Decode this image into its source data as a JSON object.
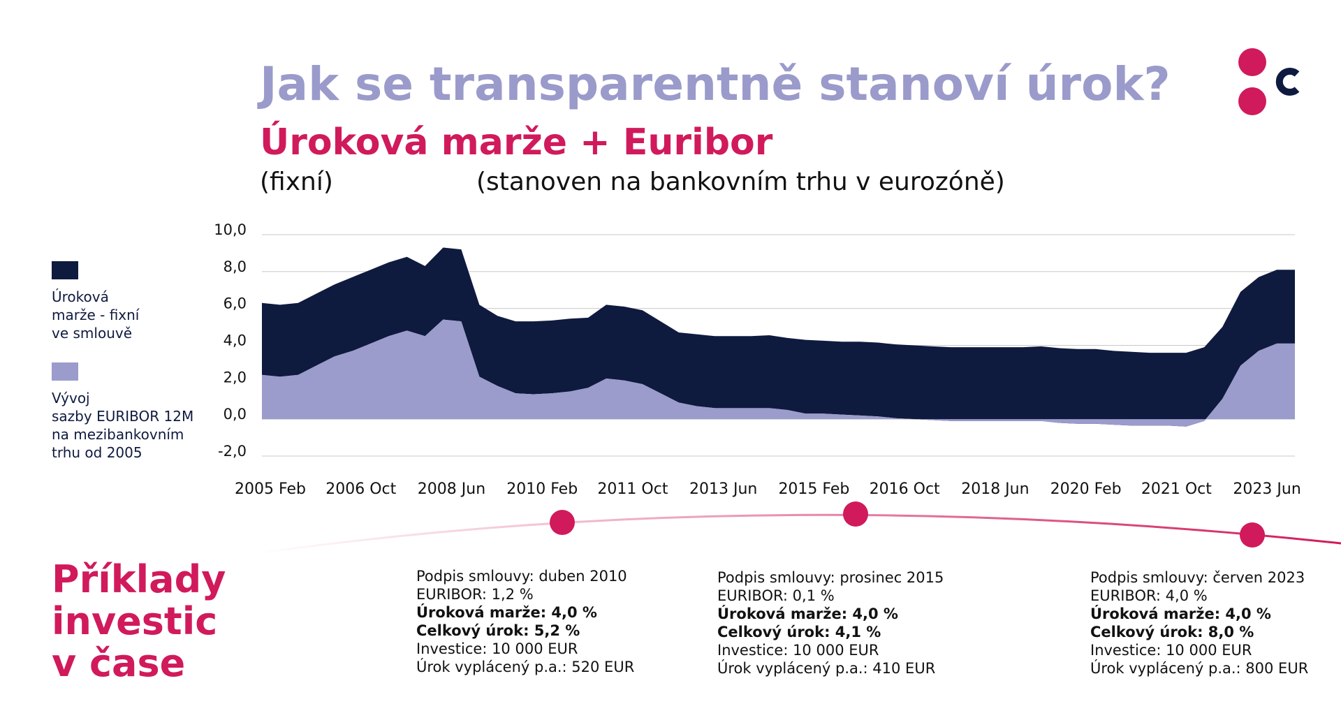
{
  "chart_data": {
    "type": "stacked_area",
    "title": "Jak se transparentně stanoví úrok?",
    "subtitle": "Úroková marže + Euribor",
    "annotations": [
      "(fixní)",
      "(stanoven na bankovním trhu v eurozóně)"
    ],
    "categories": [
      "2005 Feb",
      null,
      null,
      null,
      null,
      "2006 Oct",
      null,
      null,
      null,
      null,
      "2008 Jun",
      null,
      null,
      null,
      null,
      "2010 Feb",
      null,
      null,
      null,
      null,
      "2011 Oct",
      null,
      null,
      null,
      null,
      "2013 Jun",
      null,
      null,
      null,
      null,
      "2015 Feb",
      null,
      null,
      null,
      null,
      "2016 Oct",
      null,
      null,
      null,
      null,
      "2018 Jun",
      null,
      null,
      null,
      null,
      "2020 Feb",
      null,
      null,
      null,
      null,
      "2021 Oct",
      null,
      null,
      null,
      null,
      "2023 Jun",
      null,
      null
    ],
    "series": [
      {
        "name": "Úroková\nmarže - fixní\nve smlouvě",
        "color": "#0f1a3f",
        "values": [
          3.9,
          3.9,
          3.9,
          3.9,
          3.9,
          4.0,
          4.0,
          4.0,
          4.0,
          3.8,
          3.9,
          3.9,
          3.9,
          3.8,
          3.9,
          3.95,
          3.95,
          3.95,
          3.8,
          4.0,
          4.0,
          4.0,
          3.9,
          3.8,
          3.9,
          3.9,
          3.9,
          3.9,
          3.95,
          3.9,
          4.0,
          3.95,
          3.95,
          4.0,
          4.0,
          4.0,
          4.0,
          4.0,
          4.0,
          4.0,
          4.0,
          4.0,
          4.0,
          4.05,
          4.05,
          4.05,
          4.05,
          4.0,
          4.0,
          3.95,
          3.95,
          4.0,
          4.0,
          3.9,
          4.0,
          4.0,
          4.0,
          4.0
        ]
      },
      {
        "name": "Vývoj\nsazby EURIBOR 12M\nna mezibankovním\ntrhu od 2005",
        "color": "#9b9bcc",
        "values": [
          2.4,
          2.3,
          2.4,
          2.9,
          3.4,
          3.7,
          4.1,
          4.5,
          4.8,
          4.5,
          5.4,
          5.3,
          2.3,
          1.8,
          1.4,
          1.35,
          1.4,
          1.5,
          1.7,
          2.2,
          2.1,
          1.9,
          1.4,
          0.9,
          0.7,
          0.6,
          0.6,
          0.6,
          0.6,
          0.5,
          0.3,
          0.3,
          0.25,
          0.2,
          0.15,
          0.05,
          0.0,
          -0.05,
          -0.1,
          -0.1,
          -0.1,
          -0.1,
          -0.1,
          -0.1,
          -0.2,
          -0.25,
          -0.25,
          -0.3,
          -0.35,
          -0.35,
          -0.35,
          -0.4,
          -0.1,
          1.1,
          2.9,
          3.7,
          4.1,
          4.1
        ]
      }
    ],
    "ylim": [
      -2,
      10
    ],
    "yticks": [
      {
        "value": -2,
        "label": "-2,0"
      },
      {
        "value": 0,
        "label": "0,0"
      },
      {
        "value": 2,
        "label": "2,0"
      },
      {
        "value": 4,
        "label": "4,0"
      },
      {
        "value": 6,
        "label": "6,0"
      },
      {
        "value": 8,
        "label": "8,0"
      },
      {
        "value": 10,
        "label": "10,0"
      }
    ],
    "grid": true
  },
  "examples": {
    "title": "Příklady\ninvestic\nv čase",
    "items": [
      {
        "lines": [
          "Podpis smlouvy: duben 2010",
          "EURIBOR: 1,2 %",
          "Úroková marže: 4,0 %",
          "Celkový úrok: 5,2 %",
          "Investice: 10 000 EUR",
          "Úrok vyplácený p.a.: 520 EUR"
        ]
      },
      {
        "lines": [
          "Podpis smlouvy: prosinec 2015",
          "EURIBOR: 0,1 %",
          "Úroková marže: 4,0 %",
          "Celkový úrok: 4,1 %",
          "Investice: 10 000 EUR",
          "Úrok vyplácený p.a.: 410 EUR"
        ]
      },
      {
        "lines": [
          "Podpis smlouvy: červen 2023",
          "EURIBOR: 4,0 %",
          "Úroková marže: 4,0 %",
          "Celkový úrok: 8,0 %",
          "Investice: 10 000 EUR",
          "Úrok vyplácený p.a.: 800 EUR"
        ]
      }
    ]
  }
}
